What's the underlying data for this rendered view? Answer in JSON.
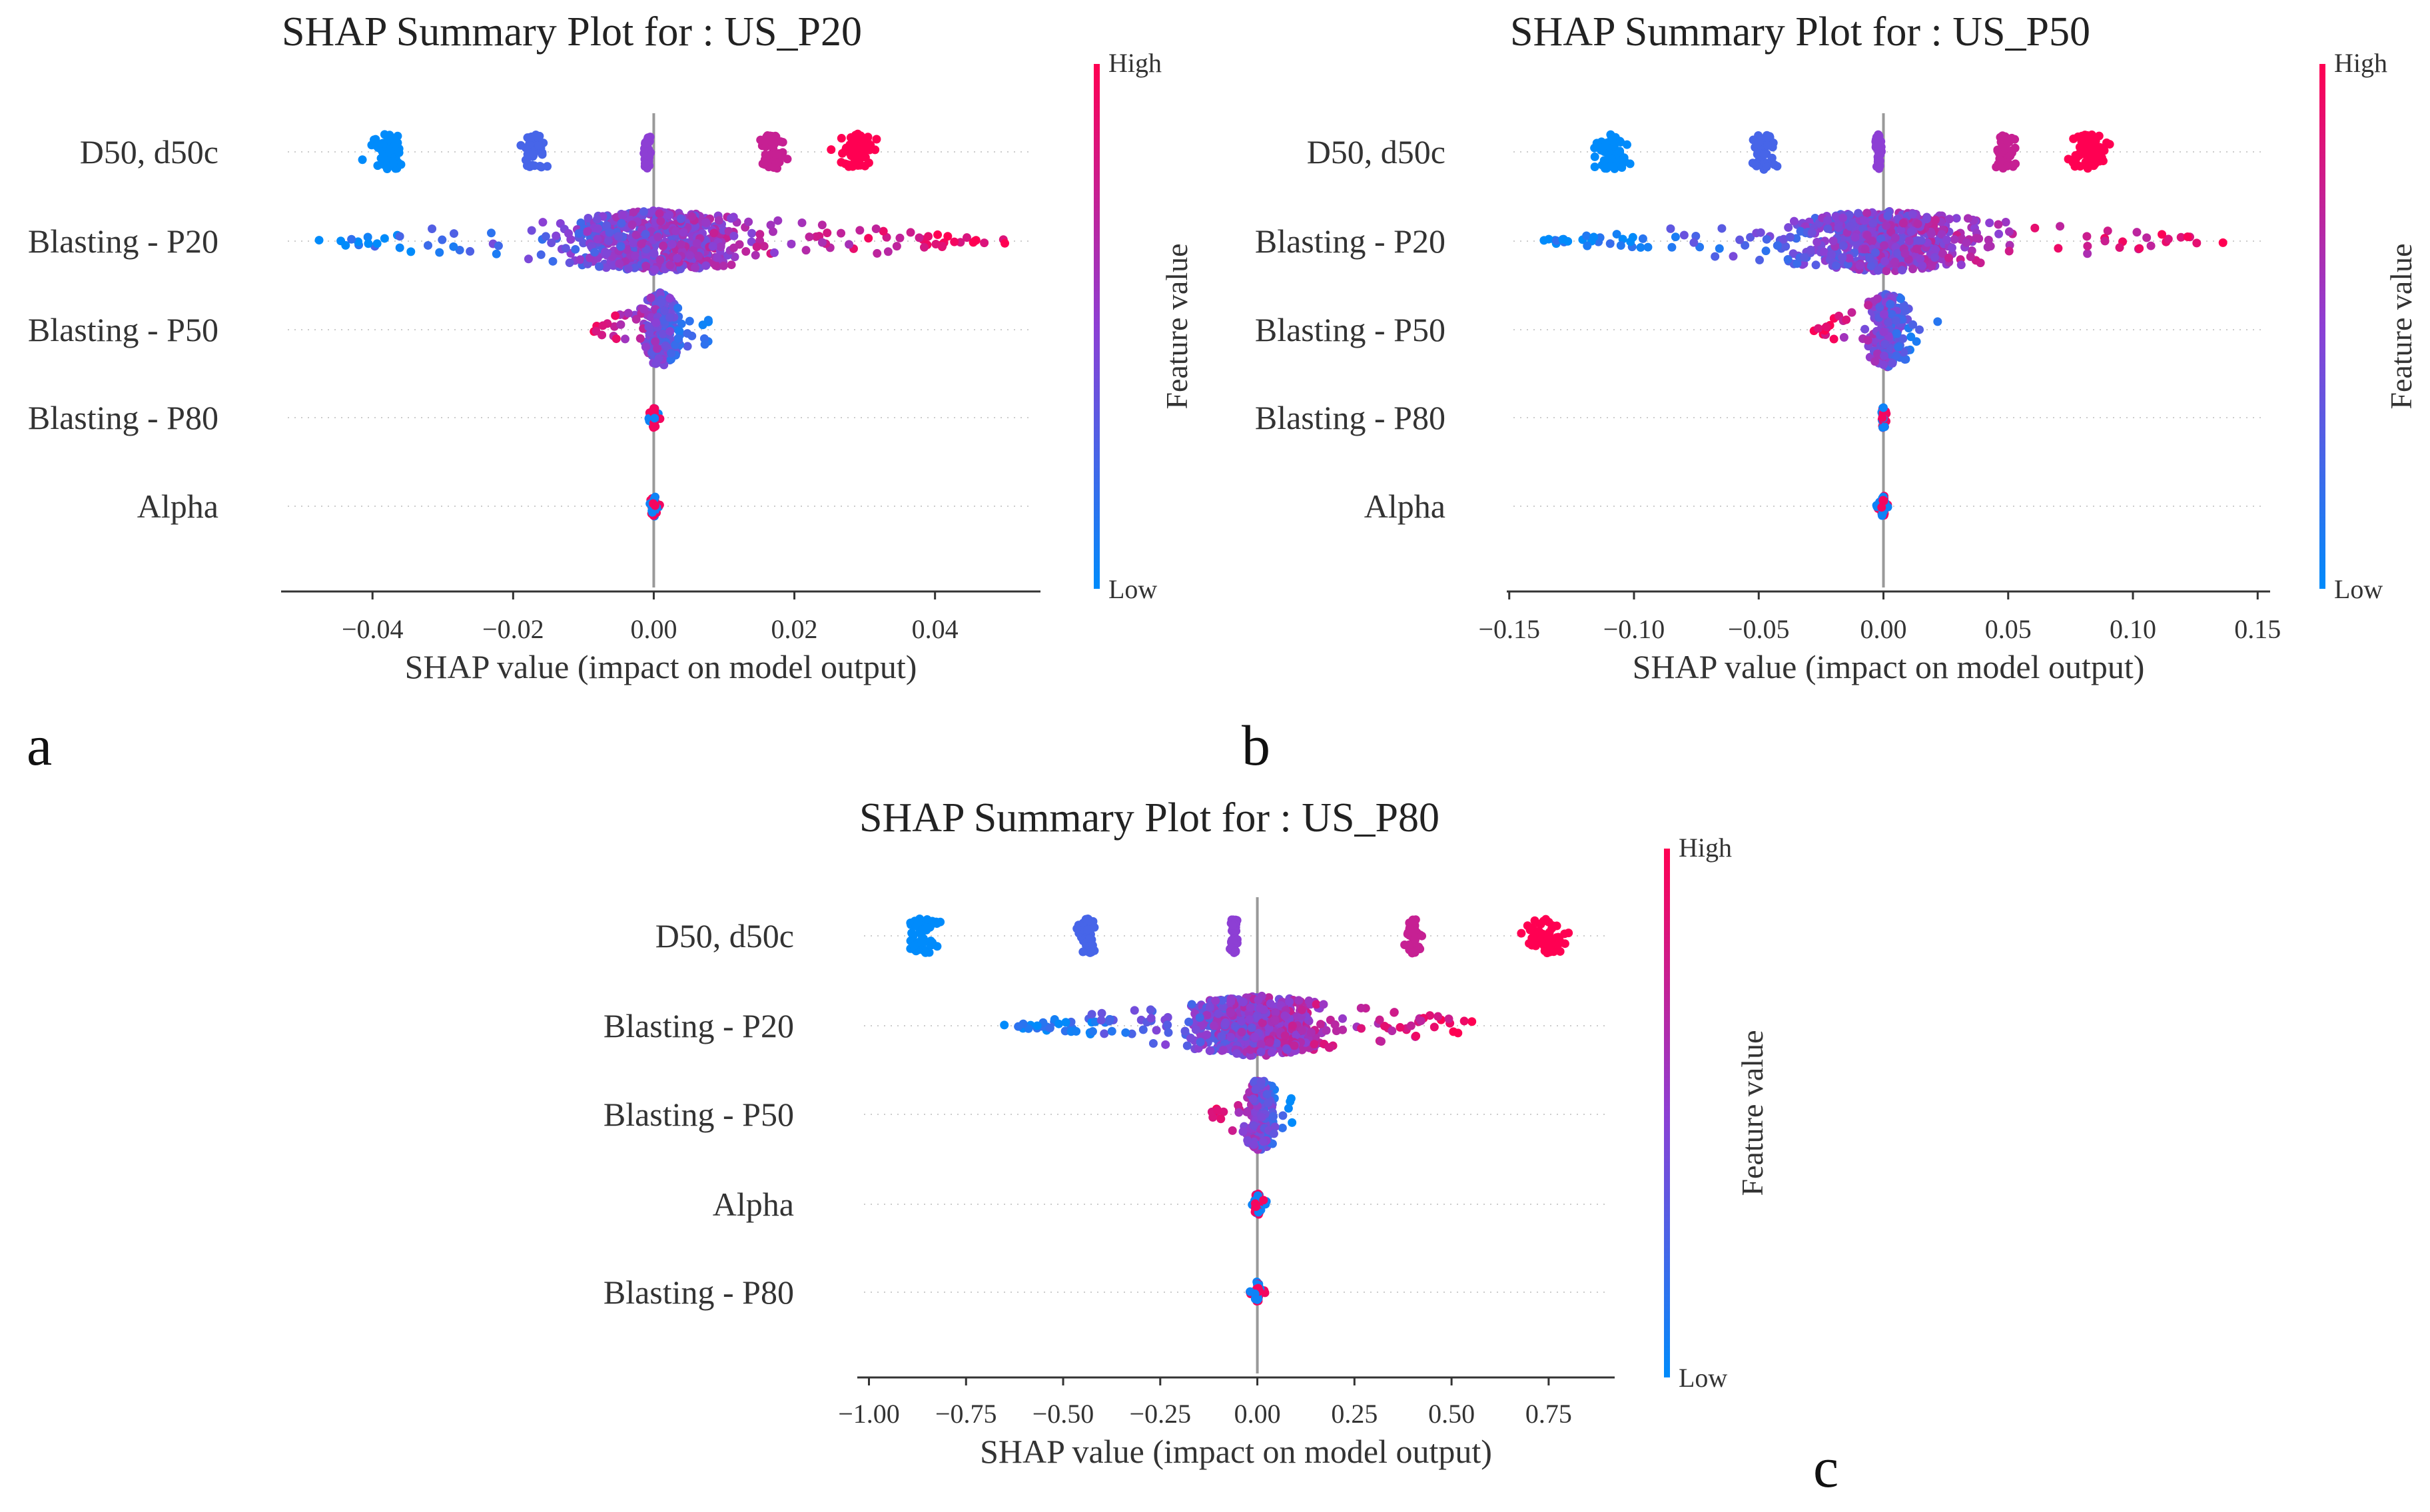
{
  "colors": {
    "low": "#008bfb",
    "mid": "#8d3fd4",
    "high": "#ff0052",
    "axis": "#333333",
    "zero_line": "#999999",
    "grid": "#cccccc"
  },
  "chart_data": [
    {
      "type": "scatter",
      "subtype": "shap-beeswarm",
      "panel_letter": "a",
      "title": "SHAP Summary Plot for : US_P20",
      "xlabel": "SHAP value (impact on model output)",
      "xlim": [
        -0.053,
        0.055
      ],
      "xticks": [
        -0.04,
        -0.02,
        0.0,
        0.02,
        0.04
      ],
      "xtick_labels": [
        "−0.04",
        "−0.02",
        "0.00",
        "0.02",
        "0.04"
      ],
      "colorbar": {
        "title": "Feature value",
        "high": "High",
        "low": "Low"
      },
      "features": [
        {
          "name": "D50, d50c",
          "shape": "clusters",
          "clusters": [
            {
              "center": -0.038,
              "width": 0.0045,
              "value": 0.0,
              "n": 60
            },
            {
              "center": -0.017,
              "width": 0.0028,
              "value": 0.25,
              "n": 45
            },
            {
              "center": -0.001,
              "width": 0.0008,
              "value": 0.5,
              "n": 40
            },
            {
              "center": 0.017,
              "width": 0.0028,
              "value": 0.75,
              "n": 45
            },
            {
              "center": 0.029,
              "width": 0.0045,
              "value": 1.0,
              "n": 60
            }
          ]
        },
        {
          "name": "Blasting - P20",
          "shape": "spread",
          "min": -0.048,
          "max": 0.05,
          "center": 0.0,
          "n": 700,
          "correlation": "positive"
        },
        {
          "name": "Blasting - P50",
          "shape": "spread",
          "min": -0.009,
          "max": 0.008,
          "center": 0.001,
          "n": 220,
          "correlation": "negative"
        },
        {
          "name": "Blasting - P80",
          "shape": "spread",
          "min": -0.001,
          "max": 0.001,
          "center": 0.0,
          "n": 50,
          "correlation": "mixed"
        },
        {
          "name": "Alpha",
          "shape": "spread",
          "min": -0.001,
          "max": 0.001,
          "center": 0.0,
          "n": 50,
          "correlation": "mixed"
        }
      ]
    },
    {
      "type": "scatter",
      "subtype": "shap-beeswarm",
      "panel_letter": "b",
      "title": "SHAP Summary Plot for : US_P50",
      "xlabel": "SHAP value (impact on model output)",
      "xlim": [
        -0.151,
        0.155
      ],
      "xticks": [
        -0.15,
        -0.1,
        -0.05,
        0.0,
        0.05,
        0.1,
        0.15
      ],
      "xtick_labels": [
        "−0.15",
        "−0.10",
        "−0.05",
        "0.00",
        "0.05",
        "0.10",
        "0.15"
      ],
      "colorbar": {
        "title": "Feature value",
        "high": "High",
        "low": "Low"
      },
      "features": [
        {
          "name": "D50, d50c",
          "shape": "clusters",
          "clusters": [
            {
              "center": -0.109,
              "width": 0.012,
              "value": 0.0,
              "n": 60
            },
            {
              "center": -0.048,
              "width": 0.008,
              "value": 0.25,
              "n": 45
            },
            {
              "center": -0.002,
              "width": 0.002,
              "value": 0.5,
              "n": 40
            },
            {
              "center": 0.049,
              "width": 0.008,
              "value": 0.75,
              "n": 45
            },
            {
              "center": 0.082,
              "width": 0.014,
              "value": 1.0,
              "n": 60
            }
          ]
        },
        {
          "name": "Blasting - P20",
          "shape": "spread",
          "min": -0.138,
          "max": 0.139,
          "center": 0.0,
          "n": 700,
          "correlation": "positive"
        },
        {
          "name": "Blasting - P50",
          "shape": "spread",
          "min": -0.028,
          "max": 0.022,
          "center": 0.002,
          "n": 220,
          "correlation": "negative"
        },
        {
          "name": "Blasting - P80",
          "shape": "spread",
          "min": -0.003,
          "max": 0.003,
          "center": 0.0,
          "n": 50,
          "correlation": "mixed"
        },
        {
          "name": "Alpha",
          "shape": "spread",
          "min": -0.003,
          "max": 0.003,
          "center": 0.0,
          "n": 50,
          "correlation": "mixed"
        }
      ]
    },
    {
      "type": "scatter",
      "subtype": "shap-beeswarm",
      "panel_letter": "c",
      "title": "SHAP Summary Plot for : US_P80",
      "xlabel": "SHAP value (impact on model output)",
      "xlim": [
        -1.03,
        0.92
      ],
      "xticks": [
        -1.0,
        -0.75,
        -0.5,
        -0.25,
        0.0,
        0.25,
        0.5,
        0.75
      ],
      "xtick_labels": [
        "−1.00",
        "−0.75",
        "−0.50",
        "−0.25",
        "0.00",
        "0.25",
        "0.50",
        "0.75"
      ],
      "colorbar": {
        "title": "Feature value",
        "high": "High",
        "low": "Low"
      },
      "features": [
        {
          "name": "D50, d50c",
          "shape": "clusters",
          "clusters": [
            {
              "center": -0.86,
              "width": 0.07,
              "value": 0.0,
              "n": 60
            },
            {
              "center": -0.44,
              "width": 0.05,
              "value": 0.25,
              "n": 45
            },
            {
              "center": -0.06,
              "width": 0.015,
              "value": 0.5,
              "n": 40
            },
            {
              "center": 0.4,
              "width": 0.04,
              "value": 0.75,
              "n": 45
            },
            {
              "center": 0.75,
              "width": 0.08,
              "value": 1.0,
              "n": 60
            }
          ]
        },
        {
          "name": "Blasting  - P20",
          "shape": "spread",
          "min": -0.66,
          "max": 0.57,
          "center": 0.0,
          "n": 700,
          "correlation": "positive"
        },
        {
          "name": "Blasting  - P50",
          "shape": "spread",
          "min": -0.12,
          "max": 0.1,
          "center": 0.01,
          "n": 220,
          "correlation": "negative"
        },
        {
          "name": "Alpha",
          "shape": "spread",
          "min": -0.02,
          "max": 0.03,
          "center": 0.0,
          "n": 60,
          "correlation": "mixed"
        },
        {
          "name": "Blasting  - P80",
          "shape": "spread",
          "min": -0.02,
          "max": 0.02,
          "center": 0.0,
          "n": 50,
          "correlation": "mixed"
        }
      ]
    }
  ]
}
